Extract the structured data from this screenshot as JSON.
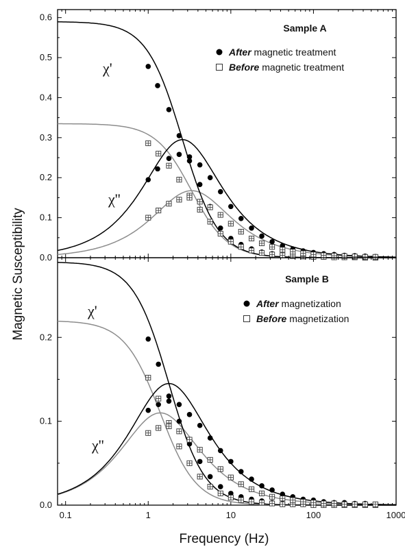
{
  "chart_data": [
    {
      "type": "line",
      "title": "Sample A",
      "xscale": "log",
      "xlim": [
        0.08,
        1000
      ],
      "ylim": [
        0,
        0.62
      ],
      "yticks": [
        0.0,
        0.1,
        0.2,
        0.3,
        0.4,
        0.5,
        0.6
      ],
      "ytick_labels": [
        "0.0",
        "0.1",
        "0.2",
        "0.3",
        "0.4",
        "0.5",
        "0.6"
      ],
      "annotations": [
        "χ'",
        "χ''"
      ],
      "legend": [
        {
          "marker": "filled-circle",
          "emphasis": "After",
          "rest": " magnetic treatment"
        },
        {
          "marker": "open-square",
          "emphasis": "Before",
          "rest": " magnetic treatment"
        }
      ],
      "legend_position": "top-right",
      "fit_curves": {
        "after": {
          "chi0": 0.59,
          "tau_freq": 2.6,
          "color": "#000000"
        },
        "before": {
          "chi0": 0.335,
          "tau_freq": 3.35,
          "color": "#8c8c8c"
        }
      },
      "series": [
        {
          "name": "After magnetic treatment",
          "component": "chi_prime",
          "marker": "filled-circle",
          "x": [
            1,
            1.3,
            1.78,
            2.37,
            3.16,
            4.22,
            5.62,
            7.5,
            10,
            13.3,
            17.8,
            23.7,
            31.6,
            42.2,
            56.2,
            75,
            100,
            133,
            178,
            237,
            316,
            422,
            562
          ],
          "y": [
            0.478,
            0.43,
            0.37,
            0.305,
            0.242,
            0.183,
            0.128,
            0.074,
            0.048,
            0.033,
            0.022,
            0.014,
            0.01,
            0.007,
            0.005,
            0.003,
            0.002,
            0.002,
            0.001,
            0.001,
            0.001,
            0.0,
            0.0
          ]
        },
        {
          "name": "After magnetic treatment",
          "component": "chi_double_prime",
          "marker": "filled-circle",
          "x": [
            1,
            1.3,
            1.78,
            2.37,
            3.16,
            4.22,
            5.62,
            7.5,
            10,
            13.3,
            17.8,
            23.7,
            31.6,
            42.2,
            56.2,
            75,
            100,
            133,
            178,
            237,
            316,
            422,
            562
          ],
          "y": [
            0.195,
            0.222,
            0.248,
            0.258,
            0.252,
            0.232,
            0.2,
            0.165,
            0.128,
            0.098,
            0.074,
            0.054,
            0.04,
            0.03,
            0.022,
            0.017,
            0.013,
            0.01,
            0.008,
            0.006,
            0.005,
            0.004,
            0.003
          ]
        },
        {
          "name": "Before magnetic treatment",
          "component": "chi_prime",
          "marker": "open-square",
          "x": [
            1,
            1.33,
            1.78,
            2.37,
            3.16,
            4.22,
            5.62,
            7.5,
            10,
            13.3,
            17.8,
            23.7,
            31.6,
            42.2,
            56.2,
            75,
            100,
            133,
            178,
            237,
            316,
            422,
            562
          ],
          "y": [
            0.286,
            0.26,
            0.23,
            0.195,
            0.155,
            0.12,
            0.09,
            0.06,
            0.04,
            0.027,
            0.018,
            0.012,
            0.008,
            0.006,
            0.004,
            0.003,
            0.002,
            0.002,
            0.001,
            0.001,
            0.001,
            0.0,
            0.0
          ]
        },
        {
          "name": "Before magnetic treatment",
          "component": "chi_double_prime",
          "marker": "open-square",
          "x": [
            1,
            1.33,
            1.78,
            2.37,
            3.16,
            4.22,
            5.62,
            7.5,
            10,
            13.3,
            17.8,
            23.7,
            31.6,
            42.2,
            56.2,
            75,
            100,
            133,
            178,
            237,
            316,
            422,
            562
          ],
          "y": [
            0.1,
            0.118,
            0.135,
            0.145,
            0.15,
            0.14,
            0.126,
            0.107,
            0.085,
            0.065,
            0.048,
            0.036,
            0.027,
            0.02,
            0.015,
            0.011,
            0.008,
            0.006,
            0.005,
            0.004,
            0.003,
            0.002,
            0.002
          ]
        }
      ]
    },
    {
      "type": "line",
      "title": "Sample B",
      "xscale": "log",
      "xlim": [
        0.08,
        1000
      ],
      "ylim": [
        0,
        0.295
      ],
      "yticks": [
        0.0,
        0.1,
        0.2
      ],
      "ytick_labels": [
        "0.0",
        "0.1",
        "0.2"
      ],
      "annotations": [
        "χ'",
        "χ''"
      ],
      "legend": [
        {
          "marker": "filled-circle",
          "emphasis": "After",
          "rest": " magnetization"
        },
        {
          "marker": "open-square",
          "emphasis": "Before",
          "rest": " magnetization"
        }
      ],
      "legend_position": "top-right",
      "fit_curves": {
        "after": {
          "chi0": 0.29,
          "tau_freq": 1.78,
          "color": "#000000"
        },
        "before": {
          "chi0": 0.22,
          "tau_freq": 1.4,
          "color": "#8c8c8c"
        }
      },
      "series": [
        {
          "name": "After magnetization",
          "component": "chi_prime",
          "marker": "filled-circle",
          "x": [
            1,
            1.33,
            1.78,
            2.37,
            3.16,
            4.22,
            5.62,
            7.5,
            10,
            13.3,
            17.8,
            23.7,
            31.6,
            42.2,
            56.2,
            75,
            100,
            133,
            178,
            237,
            316,
            422,
            562
          ],
          "y": [
            0.198,
            0.168,
            0.13,
            0.1,
            0.073,
            0.052,
            0.034,
            0.022,
            0.014,
            0.01,
            0.007,
            0.005,
            0.003,
            0.002,
            0.002,
            0.001,
            0.001,
            0.001,
            0.0,
            0.0,
            0.0,
            0.0,
            0.0
          ]
        },
        {
          "name": "After magnetization",
          "component": "chi_double_prime",
          "marker": "filled-circle",
          "x": [
            1,
            1.33,
            1.78,
            2.37,
            3.16,
            4.22,
            5.62,
            7.5,
            10,
            13.3,
            17.8,
            23.7,
            31.6,
            42.2,
            56.2,
            75,
            100,
            133,
            178,
            237,
            316,
            422,
            562
          ],
          "y": [
            0.113,
            0.12,
            0.124,
            0.12,
            0.108,
            0.095,
            0.08,
            0.065,
            0.052,
            0.04,
            0.031,
            0.023,
            0.018,
            0.013,
            0.01,
            0.007,
            0.006,
            0.004,
            0.003,
            0.003,
            0.002,
            0.002,
            0.001
          ]
        },
        {
          "name": "Before magnetization",
          "component": "chi_prime",
          "marker": "open-square",
          "x": [
            1,
            1.33,
            1.78,
            2.37,
            3.16,
            4.22,
            5.62,
            7.5,
            10,
            13.3,
            17.8,
            23.7,
            31.6,
            42.2,
            56.2,
            75,
            100,
            133,
            178,
            237,
            316,
            422,
            562
          ],
          "y": [
            0.152,
            0.127,
            0.098,
            0.07,
            0.05,
            0.034,
            0.022,
            0.014,
            0.009,
            0.006,
            0.004,
            0.003,
            0.002,
            0.001,
            0.001,
            0.001,
            0.0,
            0.0,
            0.0,
            0.0,
            0.0,
            0.0,
            0.0
          ]
        },
        {
          "name": "Before magnetization",
          "component": "chi_double_prime",
          "marker": "open-square",
          "x": [
            1,
            1.33,
            1.78,
            2.37,
            3.16,
            4.22,
            5.62,
            7.5,
            10,
            13.3,
            17.8,
            23.7,
            31.6,
            42.2,
            56.2,
            75,
            100,
            133,
            178,
            237,
            316,
            422,
            562
          ],
          "y": [
            0.086,
            0.092,
            0.094,
            0.088,
            0.078,
            0.066,
            0.054,
            0.043,
            0.033,
            0.025,
            0.019,
            0.014,
            0.01,
            0.008,
            0.006,
            0.004,
            0.003,
            0.002,
            0.002,
            0.001,
            0.001,
            0.001,
            0.001
          ]
        }
      ]
    }
  ],
  "xlabel": "Frequency (Hz)",
  "ylabel": "Magnetic Susceptibility",
  "xticks": [
    0.1,
    1,
    10,
    100,
    1000
  ],
  "xtick_labels": [
    "0.1",
    "1",
    "10",
    "100",
    "1000"
  ]
}
